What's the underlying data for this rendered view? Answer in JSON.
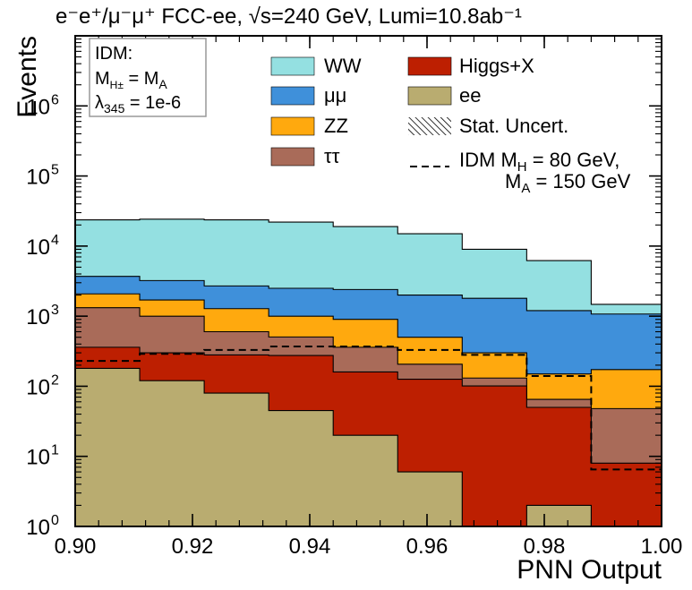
{
  "chart_data": {
    "type": "stacked-histogram",
    "title": "e⁻e⁺/μ⁻μ⁺   FCC-ee,  √s=240 GeV,  Lumi=10.8ab⁻¹",
    "xlabel": "PNN Output",
    "ylabel": "Events",
    "xlim": [
      0.9,
      1.0
    ],
    "ylim_log10": [
      0,
      7
    ],
    "yscale": "log",
    "x_ticks": [
      "0.90",
      "0.92",
      "0.94",
      "0.96",
      "0.98",
      "1.00"
    ],
    "x_tick_values": [
      0.9,
      0.92,
      0.94,
      0.96,
      0.98,
      1.0
    ],
    "y_ticks": [
      "10^0",
      "10^1",
      "10^2",
      "10^3",
      "10^4",
      "10^5",
      "10^6"
    ],
    "bin_edges": [
      0.9,
      0.911,
      0.922,
      0.933,
      0.944,
      0.955,
      0.966,
      0.977,
      0.988,
      1.0
    ],
    "stack_order": [
      "ee",
      "Higgs+X",
      "ττ",
      "ZZ",
      "μμ",
      "WW"
    ],
    "series": [
      {
        "name": "ee",
        "color": "#b9ac70",
        "values": [
          180,
          120,
          80,
          45,
          20,
          6,
          1,
          2,
          1
        ]
      },
      {
        "name": "Higgs+X",
        "color": "#bd1f01",
        "values": [
          180,
          180,
          200,
          230,
          140,
          120,
          100,
          48,
          7
        ]
      },
      {
        "name": "ττ",
        "color": "#a96b59",
        "values": [
          960,
          700,
          320,
          230,
          200,
          80,
          30,
          15,
          40
        ]
      },
      {
        "name": "ZZ",
        "color": "#ffa90e",
        "values": [
          760,
          700,
          680,
          495,
          540,
          294,
          169,
          85,
          125
        ]
      },
      {
        "name": "μμ",
        "color": "#3f90da",
        "values": [
          1620,
          1520,
          1420,
          1500,
          1500,
          1500,
          1500,
          1050,
          900
        ]
      },
      {
        "name": "WW",
        "color": "#94e0e1",
        "values": [
          20000,
          21000,
          21000,
          19500,
          16600,
          13000,
          7200,
          5000,
          400
        ]
      }
    ],
    "signal": {
      "name": "IDM M_H = 80 GeV, M_A = 150 GeV",
      "style": "dashed",
      "values": [
        230,
        290,
        330,
        370,
        370,
        330,
        280,
        140,
        6.5
      ]
    },
    "legend": {
      "position": "top-right",
      "entries": [
        "WW",
        "μμ",
        "ZZ",
        "ττ",
        "Higgs+X",
        "ee",
        "Stat. Uncert."
      ],
      "signal_line1": "IDM M",
      "signal_line1_sub": "H",
      "signal_line1_rest": " = 80 GeV,",
      "signal_line2": "M",
      "signal_line2_sub": "A",
      "signal_line2_rest": " = 150 GeV"
    },
    "info_box": {
      "line1": "IDM:",
      "line2_main": "M",
      "line2_sub": "H±",
      "line2_rest": " = M",
      "line2_sub2": "A",
      "line3_main": "λ",
      "line3_sub": "345",
      "line3_rest": " = 1e-6"
    }
  }
}
